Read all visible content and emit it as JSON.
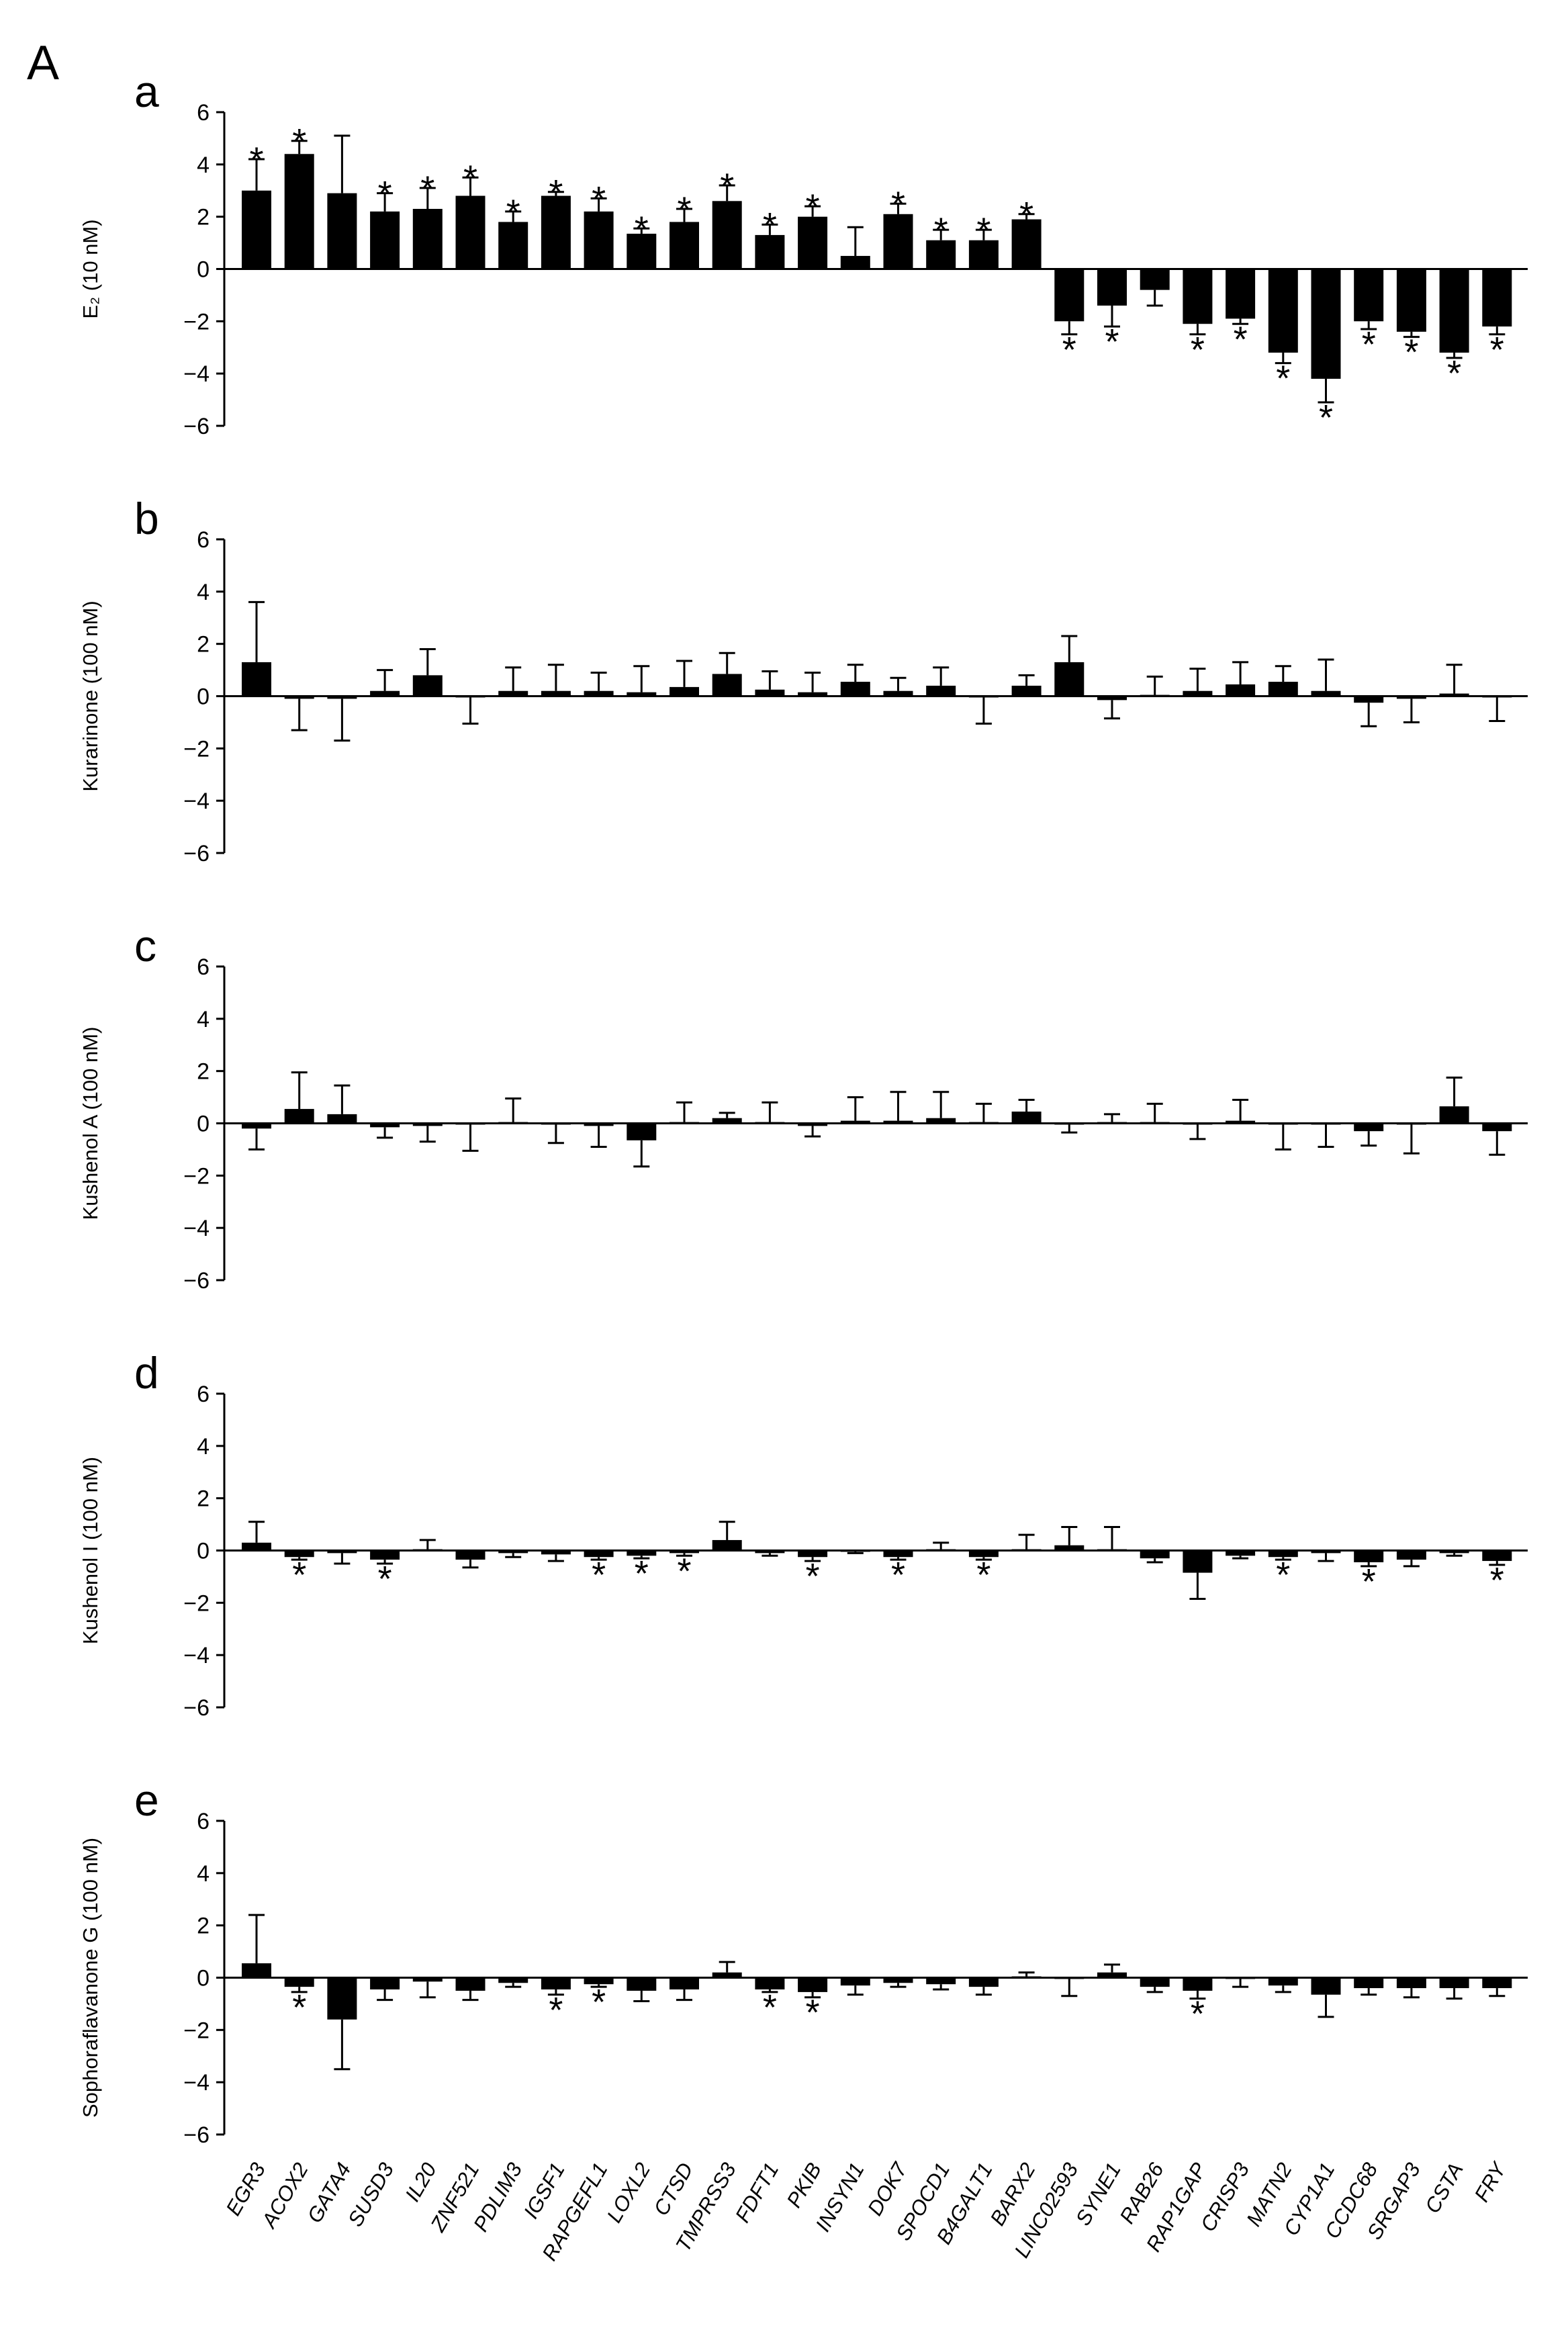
{
  "figure_label": "A",
  "chart_data": [
    {
      "type": "bar",
      "panel": "a",
      "y_label": "E₂ (10 nM)",
      "color": "#000000",
      "categories": [
        "EGR3",
        "ACOX2",
        "GATA4",
        "SUSD3",
        "IL20",
        "ZNF521",
        "PDLIM3",
        "IGSF1",
        "RAPGEFL1",
        "LOXL2",
        "CTSD",
        "TMPRSS3",
        "FDFT1",
        "PKIB",
        "INSYN1",
        "DOK7",
        "SPOCD1",
        "B4GALT1",
        "BARX2",
        "LINC02593",
        "SYNE1",
        "RAB26",
        "RAP1GAP",
        "CRISP3",
        "MATN2",
        "CYP1A1",
        "CCDC68",
        "SRGAP3",
        "CSTA",
        "FRY"
      ],
      "values": [
        3.0,
        4.4,
        2.9,
        2.2,
        2.3,
        2.8,
        1.8,
        2.8,
        2.2,
        1.35,
        1.8,
        2.6,
        1.3,
        2.0,
        0.5,
        2.1,
        1.1,
        1.1,
        1.9,
        -2.0,
        -1.4,
        -0.8,
        -2.1,
        -1.9,
        -3.2,
        -4.2,
        -2.0,
        -2.4,
        -3.2,
        -2.2
      ],
      "errors": [
        1.2,
        0.5,
        2.2,
        0.7,
        0.8,
        0.7,
        0.4,
        0.15,
        0.5,
        0.2,
        0.5,
        0.6,
        0.4,
        0.4,
        1.1,
        0.4,
        0.4,
        0.4,
        0.2,
        0.5,
        0.8,
        0.6,
        0.4,
        0.2,
        0.4,
        0.9,
        0.3,
        0.2,
        0.2,
        0.3
      ],
      "annotations": [
        "*",
        "*",
        null,
        "*",
        "*",
        "*",
        "*",
        "*",
        "*",
        "*",
        "*",
        "*",
        "*",
        "*",
        null,
        "*",
        "*",
        "*",
        "*",
        "*",
        "*",
        null,
        "*",
        "*",
        "*",
        "*",
        "*",
        "*",
        "*",
        "*"
      ],
      "ylim": [
        -6,
        6
      ],
      "yticks": [
        {
          "value": -6,
          "label": "−6"
        },
        {
          "value": -4,
          "label": "−4"
        },
        {
          "value": -2,
          "label": "−2"
        },
        0,
        2,
        4,
        6
      ]
    },
    {
      "type": "bar",
      "panel": "b",
      "y_label": "Kurarinone (100 nM)",
      "color": "#000000",
      "categories": [
        "EGR3",
        "ACOX2",
        "GATA4",
        "SUSD3",
        "IL20",
        "ZNF521",
        "PDLIM3",
        "IGSF1",
        "RAPGEFL1",
        "LOXL2",
        "CTSD",
        "TMPRSS3",
        "FDFT1",
        "PKIB",
        "INSYN1",
        "DOK7",
        "SPOCD1",
        "B4GALT1",
        "BARX2",
        "LINC02593",
        "SYNE1",
        "RAB26",
        "RAP1GAP",
        "CRISP3",
        "MATN2",
        "CYP1A1",
        "CCDC68",
        "SRGAP3",
        "CSTA",
        "FRY"
      ],
      "values": [
        1.3,
        -0.1,
        -0.1,
        0.2,
        0.8,
        -0.05,
        0.2,
        0.2,
        0.2,
        0.15,
        0.35,
        0.85,
        0.25,
        0.15,
        0.55,
        0.2,
        0.4,
        -0.05,
        0.4,
        1.3,
        -0.15,
        0.05,
        0.2,
        0.45,
        0.55,
        0.2,
        -0.25,
        -0.1,
        0.1,
        -0.05
      ],
      "errors": [
        2.3,
        1.2,
        1.6,
        0.8,
        1.0,
        1.0,
        0.9,
        1.0,
        0.7,
        1.0,
        1.0,
        0.8,
        0.7,
        0.75,
        0.65,
        0.5,
        0.7,
        1.0,
        0.4,
        1.0,
        0.7,
        0.7,
        0.85,
        0.85,
        0.6,
        1.2,
        0.9,
        0.9,
        1.1,
        0.9
      ],
      "ylim": [
        -6,
        6
      ],
      "yticks": [
        {
          "value": -6,
          "label": "−6"
        },
        {
          "value": -4,
          "label": "−4"
        },
        {
          "value": -2,
          "label": "−2"
        },
        0,
        2,
        4,
        6
      ]
    },
    {
      "type": "bar",
      "panel": "c",
      "y_label": "Kushenol A (100 nM)",
      "color": "#000000",
      "categories": [
        "EGR3",
        "ACOX2",
        "GATA4",
        "SUSD3",
        "IL20",
        "ZNF521",
        "PDLIM3",
        "IGSF1",
        "RAPGEFL1",
        "LOXL2",
        "CTSD",
        "TMPRSS3",
        "FDFT1",
        "PKIB",
        "INSYN1",
        "DOK7",
        "SPOCD1",
        "B4GALT1",
        "BARX2",
        "LINC02593",
        "SYNE1",
        "RAB26",
        "RAP1GAP",
        "CRISP3",
        "MATN2",
        "CYP1A1",
        "CCDC68",
        "SRGAP3",
        "CSTA",
        "FRY"
      ],
      "values": [
        -0.2,
        0.55,
        0.35,
        -0.15,
        -0.1,
        -0.05,
        0.05,
        -0.05,
        -0.1,
        -0.65,
        0.05,
        0.2,
        0.05,
        -0.1,
        0.1,
        0.1,
        0.2,
        0.05,
        0.45,
        -0.05,
        0.05,
        0.05,
        -0.05,
        0.1,
        -0.05,
        -0.05,
        -0.3,
        -0.05,
        0.65,
        -0.3
      ],
      "errors": [
        0.8,
        1.4,
        1.1,
        0.4,
        0.6,
        1.0,
        0.9,
        0.7,
        0.8,
        1.0,
        0.75,
        0.2,
        0.75,
        0.4,
        0.9,
        1.1,
        1.0,
        0.7,
        0.45,
        0.3,
        0.3,
        0.7,
        0.55,
        0.8,
        0.95,
        0.85,
        0.55,
        1.1,
        1.1,
        0.9
      ],
      "ylim": [
        -6,
        6
      ],
      "yticks": [
        {
          "value": -6,
          "label": "−6"
        },
        {
          "value": -4,
          "label": "−4"
        },
        {
          "value": -2,
          "label": "−2"
        },
        0,
        2,
        4,
        6
      ]
    },
    {
      "type": "bar",
      "panel": "d",
      "y_label": "Kushenol I (100 nM)",
      "color": "#000000",
      "categories": [
        "EGR3",
        "ACOX2",
        "GATA4",
        "SUSD3",
        "IL20",
        "ZNF521",
        "PDLIM3",
        "IGSF1",
        "RAPGEFL1",
        "LOXL2",
        "CTSD",
        "TMPRSS3",
        "FDFT1",
        "PKIB",
        "INSYN1",
        "DOK7",
        "SPOCD1",
        "B4GALT1",
        "BARX2",
        "LINC02593",
        "SYNE1",
        "RAB26",
        "RAP1GAP",
        "CRISP3",
        "MATN2",
        "CYP1A1",
        "CCDC68",
        "SRGAP3",
        "CSTA",
        "FRY"
      ],
      "values": [
        0.3,
        -0.25,
        -0.1,
        -0.35,
        0.05,
        -0.35,
        -0.1,
        -0.15,
        -0.25,
        -0.2,
        -0.1,
        0.4,
        -0.1,
        -0.25,
        -0.05,
        -0.25,
        0.05,
        -0.25,
        0.05,
        0.2,
        0.05,
        -0.3,
        -0.85,
        -0.2,
        -0.25,
        -0.1,
        -0.45,
        -0.35,
        -0.1,
        -0.4
      ],
      "errors": [
        0.8,
        0.1,
        0.4,
        0.15,
        0.35,
        0.3,
        0.15,
        0.25,
        0.1,
        0.1,
        0.1,
        0.7,
        0.1,
        0.15,
        0.05,
        0.1,
        0.25,
        0.1,
        0.55,
        0.7,
        0.85,
        0.15,
        1.0,
        0.1,
        0.1,
        0.3,
        0.15,
        0.25,
        0.1,
        0.15
      ],
      "annotations": [
        null,
        "*",
        null,
        "*",
        null,
        null,
        null,
        null,
        "*",
        "*",
        "*",
        null,
        null,
        "*",
        null,
        "*",
        null,
        "*",
        null,
        null,
        null,
        null,
        null,
        null,
        "*",
        null,
        "*",
        null,
        null,
        "*"
      ],
      "ylim": [
        -6,
        6
      ],
      "yticks": [
        {
          "value": -6,
          "label": "−6"
        },
        {
          "value": -4,
          "label": "−4"
        },
        {
          "value": -2,
          "label": "−2"
        },
        0,
        2,
        4,
        6
      ]
    },
    {
      "type": "bar",
      "panel": "e",
      "y_label": "Sophoraflavanone G (100 nM)",
      "color": "#000000",
      "categories": [
        "EGR3",
        "ACOX2",
        "GATA4",
        "SUSD3",
        "IL20",
        "ZNF521",
        "PDLIM3",
        "IGSF1",
        "RAPGEFL1",
        "LOXL2",
        "CTSD",
        "TMPRSS3",
        "FDFT1",
        "PKIB",
        "INSYN1",
        "DOK7",
        "SPOCD1",
        "B4GALT1",
        "BARX2",
        "LINC02593",
        "SYNE1",
        "RAB26",
        "RAP1GAP",
        "CRISP3",
        "MATN2",
        "CYP1A1",
        "CCDC68",
        "SRGAP3",
        "CSTA",
        "FRY"
      ],
      "values": [
        0.55,
        -0.35,
        -1.6,
        -0.45,
        -0.15,
        -0.5,
        -0.2,
        -0.45,
        -0.25,
        -0.5,
        -0.45,
        0.2,
        -0.45,
        -0.55,
        -0.3,
        -0.2,
        -0.25,
        -0.35,
        0.05,
        -0.05,
        0.2,
        -0.35,
        -0.5,
        -0.05,
        -0.3,
        -0.65,
        -0.4,
        -0.4,
        -0.4,
        -0.4
      ],
      "errors": [
        1.85,
        0.2,
        1.9,
        0.4,
        0.6,
        0.35,
        0.15,
        0.2,
        0.1,
        0.4,
        0.4,
        0.4,
        0.1,
        0.2,
        0.35,
        0.15,
        0.2,
        0.3,
        0.15,
        0.65,
        0.3,
        0.2,
        0.3,
        0.3,
        0.25,
        0.85,
        0.25,
        0.35,
        0.4,
        0.3
      ],
      "annotations": [
        null,
        "*",
        null,
        null,
        null,
        null,
        null,
        "*",
        "*",
        null,
        null,
        null,
        "*",
        "*",
        null,
        null,
        null,
        null,
        null,
        null,
        null,
        null,
        "*",
        null,
        null,
        null,
        null,
        null,
        null,
        null
      ],
      "ylim": [
        -6,
        6
      ],
      "yticks": [
        {
          "value": -6,
          "label": "−6"
        },
        {
          "value": -4,
          "label": "−4"
        },
        {
          "value": -2,
          "label": "−2"
        },
        0,
        2,
        4,
        6
      ],
      "show_categories": true
    }
  ]
}
